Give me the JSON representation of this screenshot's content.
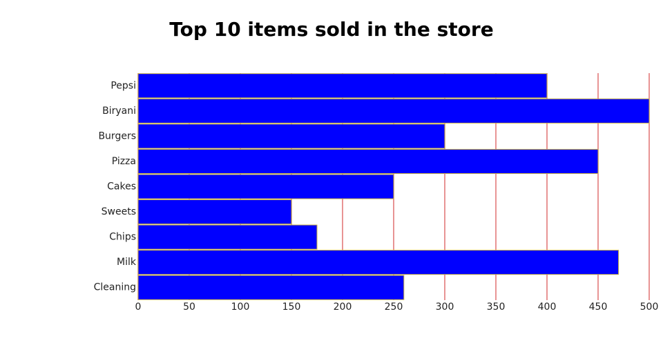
{
  "chart_data": {
    "type": "bar",
    "orientation": "horizontal",
    "title": "Top 10 items sold in the store",
    "categories": [
      "Pepsi",
      "Biryani",
      "Burgers",
      "Pizza",
      "Cakes",
      "Sweets",
      "Chips",
      "Milk",
      "Cleaning"
    ],
    "values": [
      400,
      500,
      300,
      450,
      250,
      150,
      175,
      470,
      260
    ],
    "color": "#0000ff",
    "edge_color": "#c8b040",
    "xlim": [
      0,
      500
    ],
    "xticks": [
      0,
      50,
      100,
      150,
      200,
      250,
      300,
      350,
      400,
      450,
      500
    ],
    "grid": true,
    "grid_color": "#e07070"
  }
}
